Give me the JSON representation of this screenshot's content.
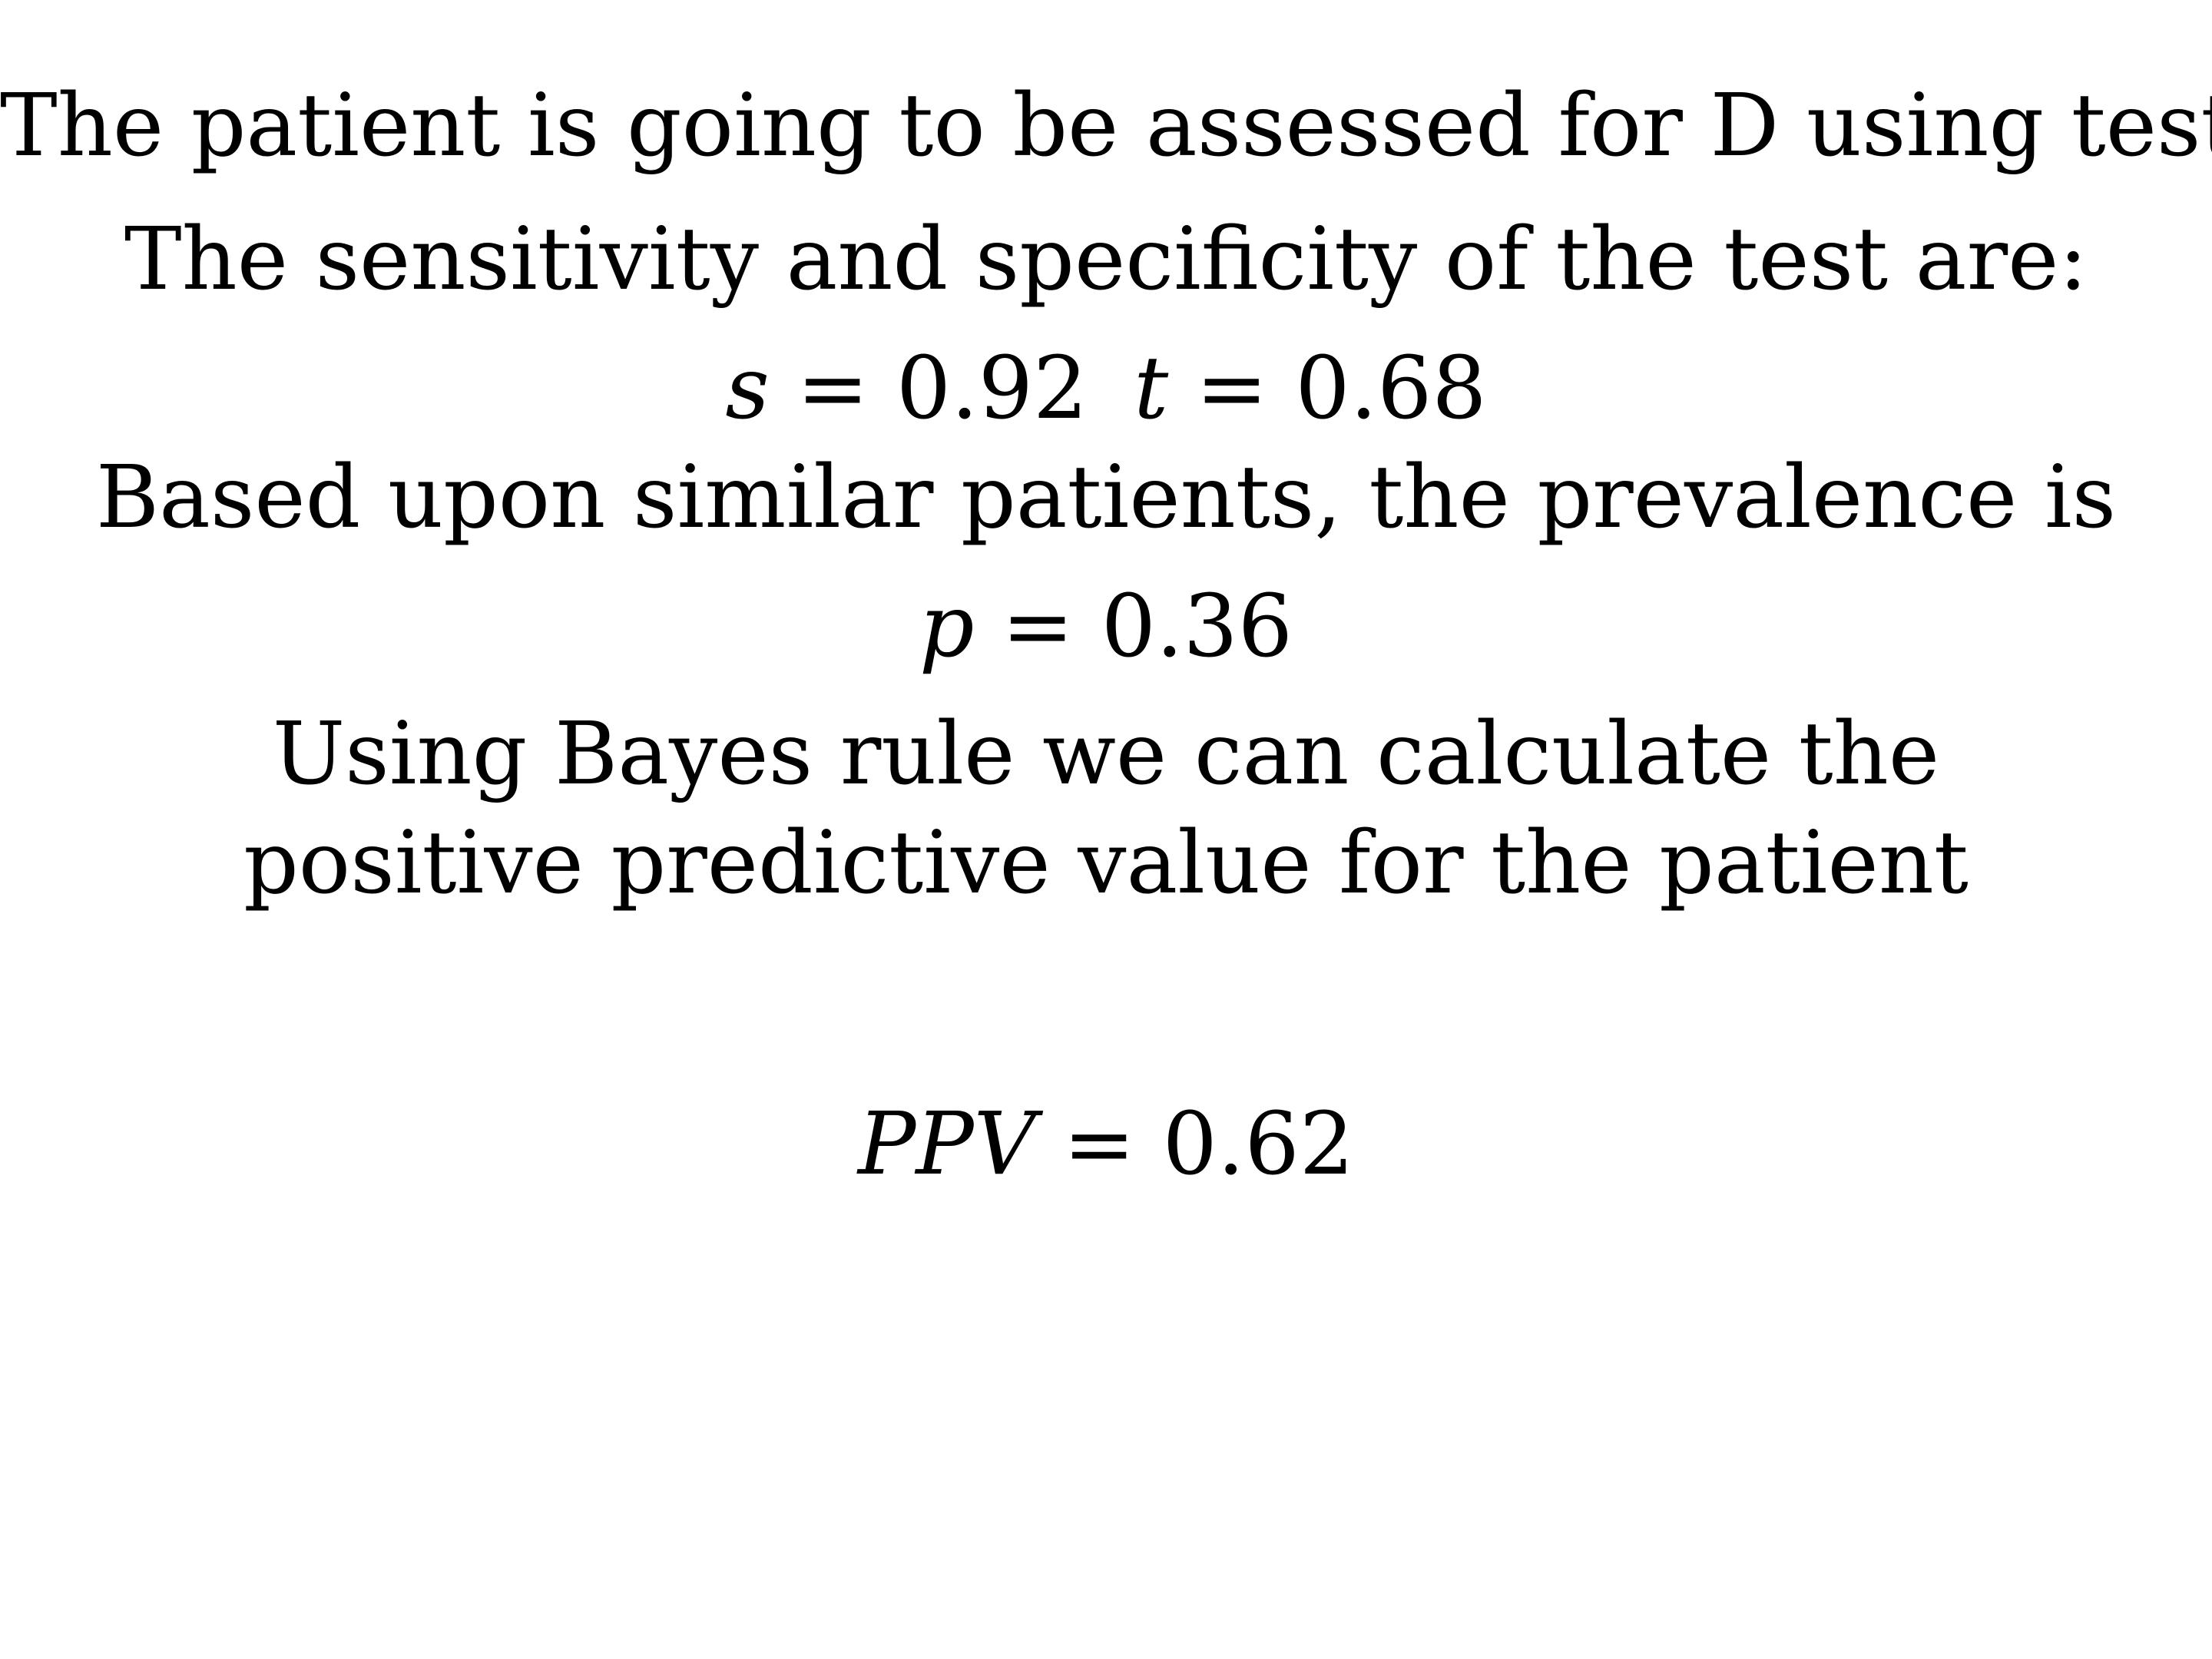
{
  "lines": {
    "intro": "The patient is going to be assessed for D using test T",
    "sens_spec_intro": "The sensitivity and specificity of the test are:",
    "bayes_1": "Using Bayes rule we can calculate the",
    "bayes_2": "positive predictive value for the patient",
    "prevalence_intro": "Based upon similar patients, the prevalence is"
  },
  "equations": {
    "sensitivity": {
      "symbol": "s",
      "value": "0.92"
    },
    "specificity": {
      "symbol": "t",
      "value": "0.68"
    },
    "prevalence": {
      "symbol": "p",
      "value": "0.36"
    },
    "ppv": {
      "symbol": "PPV",
      "value": "0.62"
    },
    "equals": "="
  }
}
